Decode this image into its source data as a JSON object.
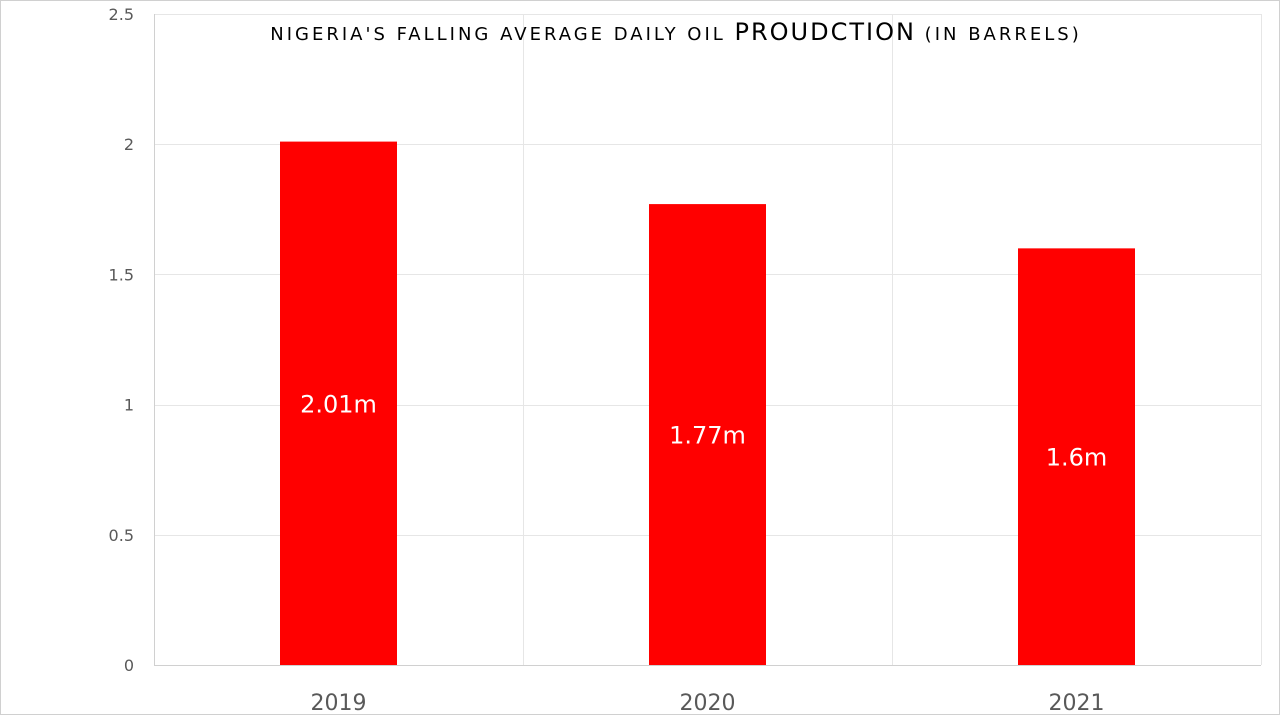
{
  "chart_data": {
    "type": "bar",
    "title": {
      "part1": "NIGERIA'S FALLING AVERAGE DAILY OIL ",
      "part2": "PROUDCTION",
      "part3": " (IN BARRELS)"
    },
    "categories": [
      "2019",
      "2020",
      "2021"
    ],
    "values": [
      2.01,
      1.77,
      1.6
    ],
    "data_labels": [
      "2.01m",
      "1.77m",
      "1.6m"
    ],
    "yticks": [
      "0",
      "0.5",
      "1",
      "1.5",
      "2",
      "2.5"
    ],
    "ylim": [
      0,
      2.5
    ],
    "grid": true,
    "bar_color": "#ff0000",
    "legend": "none"
  }
}
